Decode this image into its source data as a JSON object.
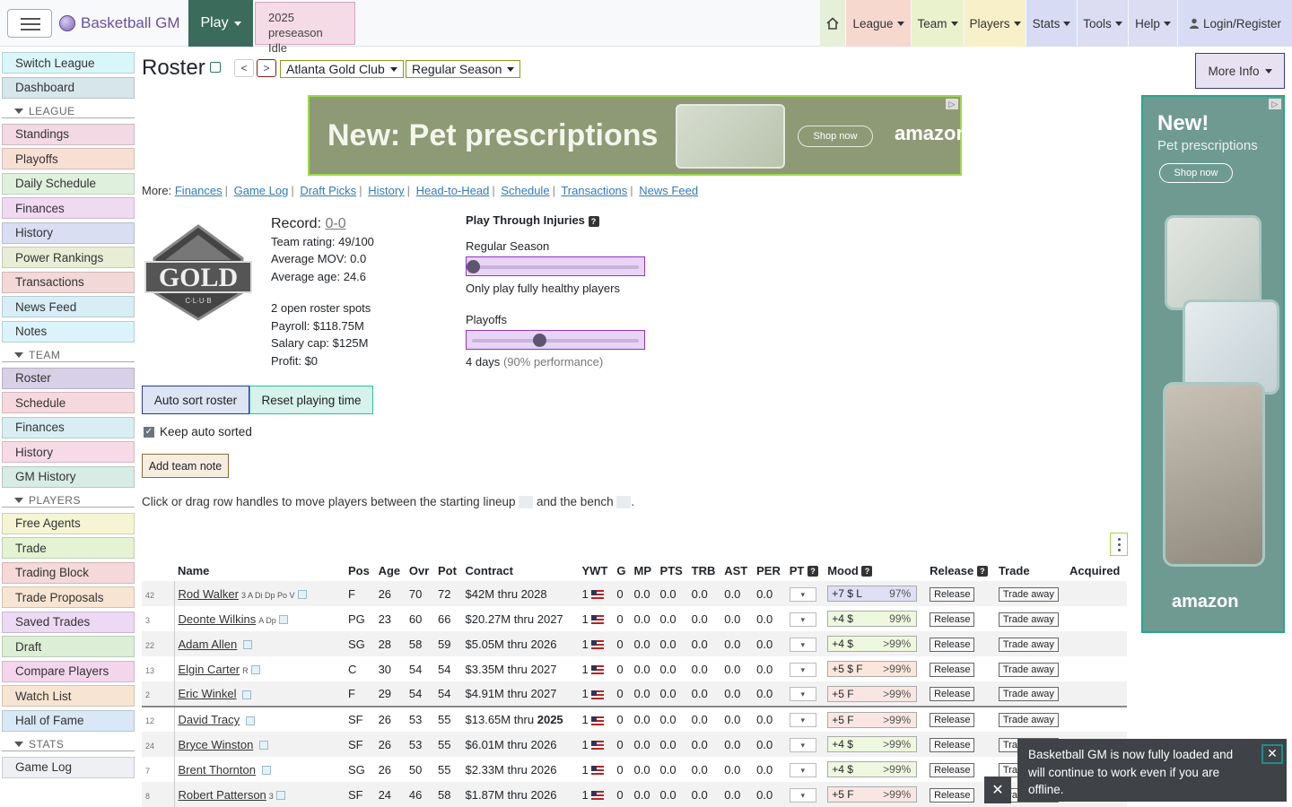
{
  "navbar": {
    "brand": "Basketball GM",
    "play": "Play",
    "phase_line1": "2025 preseason",
    "phase_line2": "Idle",
    "league": "League",
    "team": "Team",
    "players": "Players",
    "stats": "Stats",
    "tools": "Tools",
    "help": "Help",
    "login": "Login/Register"
  },
  "sidebar": {
    "top": [
      "Switch League",
      "Dashboard"
    ],
    "league_header": "LEAGUE",
    "league": [
      "Standings",
      "Playoffs",
      "Daily Schedule",
      "Finances",
      "History",
      "Power Rankings",
      "Transactions",
      "News Feed",
      "Notes"
    ],
    "team_header": "TEAM",
    "team": [
      "Roster",
      "Schedule",
      "Finances",
      "History",
      "GM History"
    ],
    "players_header": "PLAYERS",
    "players": [
      "Free Agents",
      "Trade",
      "Trading Block",
      "Trade Proposals",
      "Saved Trades",
      "Draft",
      "Compare Players",
      "Watch List",
      "Hall of Fame"
    ],
    "stats_header": "STATS",
    "stats": [
      "Game Log"
    ]
  },
  "page": {
    "title": "Roster",
    "team_select": "Atlanta Gold Club",
    "season_select": "Regular Season",
    "more_info": "More Info",
    "prev": "<",
    "next": ">"
  },
  "ads": {
    "banner_headline": "New: Pet prescriptions",
    "banner_shop": "Shop now",
    "banner_brand": "amazon",
    "side_new": "New!",
    "side_sub": "Pet prescriptions",
    "side_shop": "Shop now",
    "side_brand": "amazon"
  },
  "more_links": {
    "label": "More:",
    "links": [
      "Finances",
      "Game Log",
      "Draft Picks",
      "History",
      "Head-to-Head",
      "Schedule",
      "Transactions",
      "News Feed"
    ]
  },
  "team_info": {
    "logo_text": "GOLD",
    "logo_sub": "C·L·U·B",
    "record_label": "Record:",
    "record": "0-0",
    "rating": "Team rating: 49/100",
    "mov": "Average MOV: 0.0",
    "age": "Average age: 24.6",
    "roster_spots": "2 open roster spots",
    "payroll": "Payroll: $118.75M",
    "salary_cap": "Salary cap: $125M",
    "profit": "Profit: $0"
  },
  "injuries": {
    "header": "Play Through Injuries",
    "regular_label": "Regular Season",
    "regular_value": 0,
    "regular_desc": "Only play fully healthy players",
    "playoffs_label": "Playoffs",
    "playoffs_value": 4,
    "playoffs_max": 10,
    "playoffs_desc_a": "4 days",
    "playoffs_desc_b": "(90% performance)"
  },
  "controls": {
    "auto_sort": "Auto sort roster",
    "reset_pt": "Reset playing time",
    "keep_sorted": "Keep auto sorted",
    "add_note": "Add team note",
    "instructions_a": "Click or drag row handles to move players between the starting lineup",
    "instructions_b": "and the bench",
    "instructions_c": "."
  },
  "table": {
    "headers": [
      "Name",
      "Pos",
      "Age",
      "Ovr",
      "Pot",
      "Contract",
      "YWT",
      "G",
      "MP",
      "PTS",
      "TRB",
      "AST",
      "PER",
      "PT",
      "Mood",
      "Release",
      "Trade",
      "Acquired"
    ],
    "rows": [
      {
        "num": "42",
        "name": "Rod Walker",
        "skills": "3 A Di Dp Po V",
        "pos": "F",
        "age": "26",
        "ovr": "70",
        "pot": "72",
        "contract": "$42M thru 2028",
        "ywt": "1",
        "g": "0",
        "mp": "0.0",
        "pts": "0.0",
        "trb": "0.0",
        "ast": "0.0",
        "per": "0.0",
        "mood": "+7 $ L",
        "mood_pct": "97%",
        "release": "Release",
        "trade": "Trade away"
      },
      {
        "num": "3",
        "name": "Deonte Wilkins",
        "skills": "A Dp",
        "pos": "PG",
        "age": "23",
        "ovr": "60",
        "pot": "66",
        "contract": "$20.27M thru 2027",
        "ywt": "1",
        "g": "0",
        "mp": "0.0",
        "pts": "0.0",
        "trb": "0.0",
        "ast": "0.0",
        "per": "0.0",
        "mood": "+4 $",
        "mood_pct": "99%",
        "release": "Release",
        "trade": "Trade away"
      },
      {
        "num": "22",
        "name": "Adam Allen",
        "skills": "",
        "pos": "SG",
        "age": "28",
        "ovr": "58",
        "pot": "59",
        "contract": "$5.05M thru 2026",
        "ywt": "1",
        "g": "0",
        "mp": "0.0",
        "pts": "0.0",
        "trb": "0.0",
        "ast": "0.0",
        "per": "0.0",
        "mood": "+4 $",
        "mood_pct": ">99%",
        "release": "Release",
        "trade": "Trade away"
      },
      {
        "num": "13",
        "name": "Elgin Carter",
        "skills": "R",
        "pos": "C",
        "age": "30",
        "ovr": "54",
        "pot": "54",
        "contract": "$3.35M thru 2027",
        "ywt": "1",
        "g": "0",
        "mp": "0.0",
        "pts": "0.0",
        "trb": "0.0",
        "ast": "0.0",
        "per": "0.0",
        "mood": "+5 $ F",
        "mood_pct": ">99%",
        "release": "Release",
        "trade": "Trade away"
      },
      {
        "num": "2",
        "name": "Eric Winkel",
        "skills": "",
        "pos": "F",
        "age": "29",
        "ovr": "54",
        "pot": "54",
        "contract": "$4.91M thru 2027",
        "ywt": "1",
        "g": "0",
        "mp": "0.0",
        "pts": "0.0",
        "trb": "0.0",
        "ast": "0.0",
        "per": "0.0",
        "mood": "+5 F",
        "mood_pct": ">99%",
        "release": "Release",
        "trade": "Trade away"
      },
      {
        "num": "12",
        "name": "David Tracy",
        "skills": "",
        "pos": "SF",
        "age": "26",
        "ovr": "53",
        "pot": "55",
        "contract": "$13.65M thru ",
        "contract_bold": "2025",
        "ywt": "1",
        "g": "0",
        "mp": "0.0",
        "pts": "0.0",
        "trb": "0.0",
        "ast": "0.0",
        "per": "0.0",
        "mood": "+5 F",
        "mood_pct": ">99%",
        "release": "Release",
        "trade": "Trade away"
      },
      {
        "num": "24",
        "name": "Bryce Winston",
        "skills": "",
        "pos": "SF",
        "age": "26",
        "ovr": "53",
        "pot": "55",
        "contract": "$6.01M thru 2026",
        "ywt": "1",
        "g": "0",
        "mp": "0.0",
        "pts": "0.0",
        "trb": "0.0",
        "ast": "0.0",
        "per": "0.0",
        "mood": "+4 $",
        "mood_pct": ">99%",
        "release": "Release",
        "trade": "Trade away"
      },
      {
        "num": "7",
        "name": "Brent Thornton",
        "skills": "",
        "pos": "SG",
        "age": "26",
        "ovr": "50",
        "pot": "55",
        "contract": "$2.33M thru 2026",
        "ywt": "1",
        "g": "0",
        "mp": "0.0",
        "pts": "0.0",
        "trb": "0.0",
        "ast": "0.0",
        "per": "0.0",
        "mood": "+4 $",
        "mood_pct": ">99%",
        "release": "Release",
        "trade": "Trade away"
      },
      {
        "num": "8",
        "name": "Robert Patterson",
        "skills": "3",
        "pos": "SF",
        "age": "24",
        "ovr": "46",
        "pot": "58",
        "contract": "$1.87M thru 2026",
        "ywt": "1",
        "g": "0",
        "mp": "0.0",
        "pts": "0.0",
        "trb": "0.0",
        "ast": "0.0",
        "per": "0.0",
        "mood": "+5 F",
        "mood_pct": ">99%",
        "release": "Release",
        "trade": "Trade away"
      }
    ]
  },
  "toast": {
    "message": "Basketball GM is now fully loaded and will continue to work even if you are offline.",
    "close": "✕"
  },
  "colors": {
    "play": "#3a6b5b",
    "brand": "#6c4ea0"
  }
}
